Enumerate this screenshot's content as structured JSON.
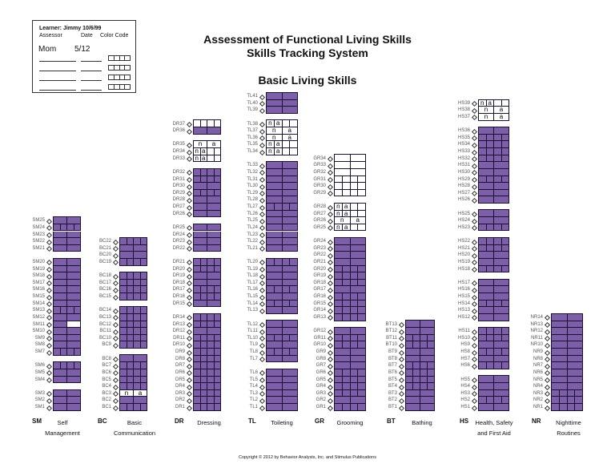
{
  "header_box": {
    "learner": "Learner: Jimmy 10/6/99",
    "assessor_label": "Assessor",
    "date_label": "Date",
    "color_code_label": "Color Code",
    "entries": [
      {
        "assessor": "Mom",
        "date": "5/12"
      }
    ],
    "blank_rows": 4
  },
  "title": {
    "line1": "Assessment of Functional Living Skills",
    "line2": "Skills Tracking System",
    "subtitle": "Basic Living Skills"
  },
  "colors": {
    "mastered": "#7c5fa8",
    "border": "#1a1030"
  },
  "cell_legend": {
    "p4": "4 purple quarters",
    "p2": "2 purple halves",
    "w4": "4 white quarters",
    "w2": "2 white halves",
    "pw": "purple half, white half",
    "na2": "n / a halves",
    "na4": "n a quarters, white rest"
  },
  "na_text": [
    "n",
    "a"
  ],
  "columns": [
    {
      "code": "SM",
      "name": [
        "Self",
        "Management"
      ],
      "prefix": "SM",
      "groups": [
        [
          "p2",
          "p4",
          "p2",
          "p2",
          "p2"
        ],
        [
          "p2",
          "p2",
          "p2",
          "p2",
          "p2",
          "p2",
          "p2",
          "p4",
          "p2",
          "pw",
          "p2",
          "p2",
          "p2",
          "p4"
        ],
        [
          "p4",
          "p2",
          "p2"
        ],
        [
          "p2",
          "p2",
          "p2"
        ]
      ]
    },
    {
      "code": "BC",
      "name": [
        "Basic",
        "Communication"
      ],
      "prefix": "BC",
      "groups": [
        [
          "p4",
          "p2",
          "p2",
          "p4"
        ],
        [
          "p4",
          "p4",
          "p4",
          "p4"
        ],
        [
          "p4",
          "p4",
          "p4",
          "p4",
          "p4",
          "p4"
        ],
        [
          "p2",
          "p4",
          "p4",
          "p4",
          "p4",
          "na2",
          "p2",
          "p4"
        ]
      ]
    },
    {
      "code": "DR",
      "name": [
        "Dressing"
      ],
      "prefix": "DR",
      "groups": [
        [
          "w4",
          "p2"
        ],
        [
          "na2",
          "na4",
          "na4"
        ],
        [
          "p4",
          "p4",
          "p2",
          "p4",
          "p2",
          "p2",
          "p2"
        ],
        [
          "p2",
          "p2",
          "p2",
          "p2"
        ],
        [
          "p4",
          "p4",
          "p2",
          "p2",
          "p4",
          "p4",
          "p2"
        ],
        [
          "p4",
          "p4",
          "p2",
          "p4",
          "p4",
          "p4",
          "p4",
          "p4",
          "p4",
          "p4",
          "p4",
          "p4",
          "p4",
          "p4"
        ]
      ]
    },
    {
      "code": "TL",
      "name": [
        "Toileting"
      ],
      "prefix": "TL",
      "groups": [
        [
          "p2",
          "p2",
          "p2"
        ],
        [
          "na4",
          "na2",
          "na2",
          "na4",
          "na4"
        ],
        [
          "p2",
          "p2",
          "p2",
          "p2",
          "p2",
          "p2",
          "p4",
          "p2",
          "p2",
          "p2",
          "p2",
          "p2",
          "p2"
        ],
        [
          "p4",
          "p2",
          "p2",
          "p2",
          "p4",
          "p2",
          "p4",
          "p2"
        ],
        [
          "p2",
          "p2",
          "p4",
          "p2",
          "p4",
          "p2"
        ],
        [
          "p2",
          "p2",
          "p2",
          "p2",
          "p2",
          "p2"
        ]
      ]
    },
    {
      "code": "GR",
      "name": [
        "Grooming"
      ],
      "prefix": "GR",
      "groups": [
        [
          "w2",
          "w2",
          "w2",
          "w4",
          "w4",
          "w4"
        ],
        [
          "na4",
          "na4",
          "na2",
          "na4"
        ],
        [
          "p2",
          "p2",
          "p2",
          "p2",
          "p4",
          "p4",
          "p4",
          "p2",
          "p4",
          "p4",
          "p4",
          "p4"
        ],
        [
          "p2",
          "p4",
          "p4",
          "p2",
          "p2",
          "p2",
          "p4",
          "p4",
          "p4",
          "p4",
          "p2",
          "p4"
        ]
      ]
    },
    {
      "code": "BT",
      "name": [
        "Bathing"
      ],
      "prefix": "BT",
      "groups": [
        [
          "p2",
          "p2",
          "p4",
          "p4",
          "p2",
          "p2",
          "p4",
          "p4",
          "p4",
          "p4",
          "p2",
          "p2",
          "p2"
        ]
      ]
    },
    {
      "code": "HS",
      "name": [
        "Health, Safety",
        "and First Aid"
      ],
      "prefix": "HS",
      "groups": [
        [
          "na4",
          "na2",
          "na2"
        ],
        [
          "p2",
          "p4",
          "p4",
          "p4",
          "p4",
          "p2",
          "p2",
          "p4",
          "p2",
          "p2",
          "p2"
        ],
        [
          "p2",
          "p2",
          "p4"
        ],
        [
          "p4",
          "p4",
          "p2",
          "p2",
          "p4"
        ],
        [
          "p2",
          "p2",
          "p2",
          "p4",
          "p2",
          "p2"
        ],
        [
          "p4",
          "p4",
          "p2",
          "p4",
          "p2",
          "p4"
        ],
        [
          "p2",
          "p2",
          "p2",
          "p4",
          "p2"
        ]
      ]
    },
    {
      "code": "NR",
      "name": [
        "Nighttime",
        "Routines"
      ],
      "prefix": "NR",
      "groups": [
        [
          "p2",
          "p2",
          "p2",
          "p2",
          "p2",
          "p2",
          "p2",
          "p2",
          "p2",
          "p2",
          "p2",
          "p4",
          "p4",
          "p4"
        ]
      ]
    }
  ],
  "footer": "Copyright © 2012 by Behavior Analysts, Inc. and Stimulus Publications"
}
